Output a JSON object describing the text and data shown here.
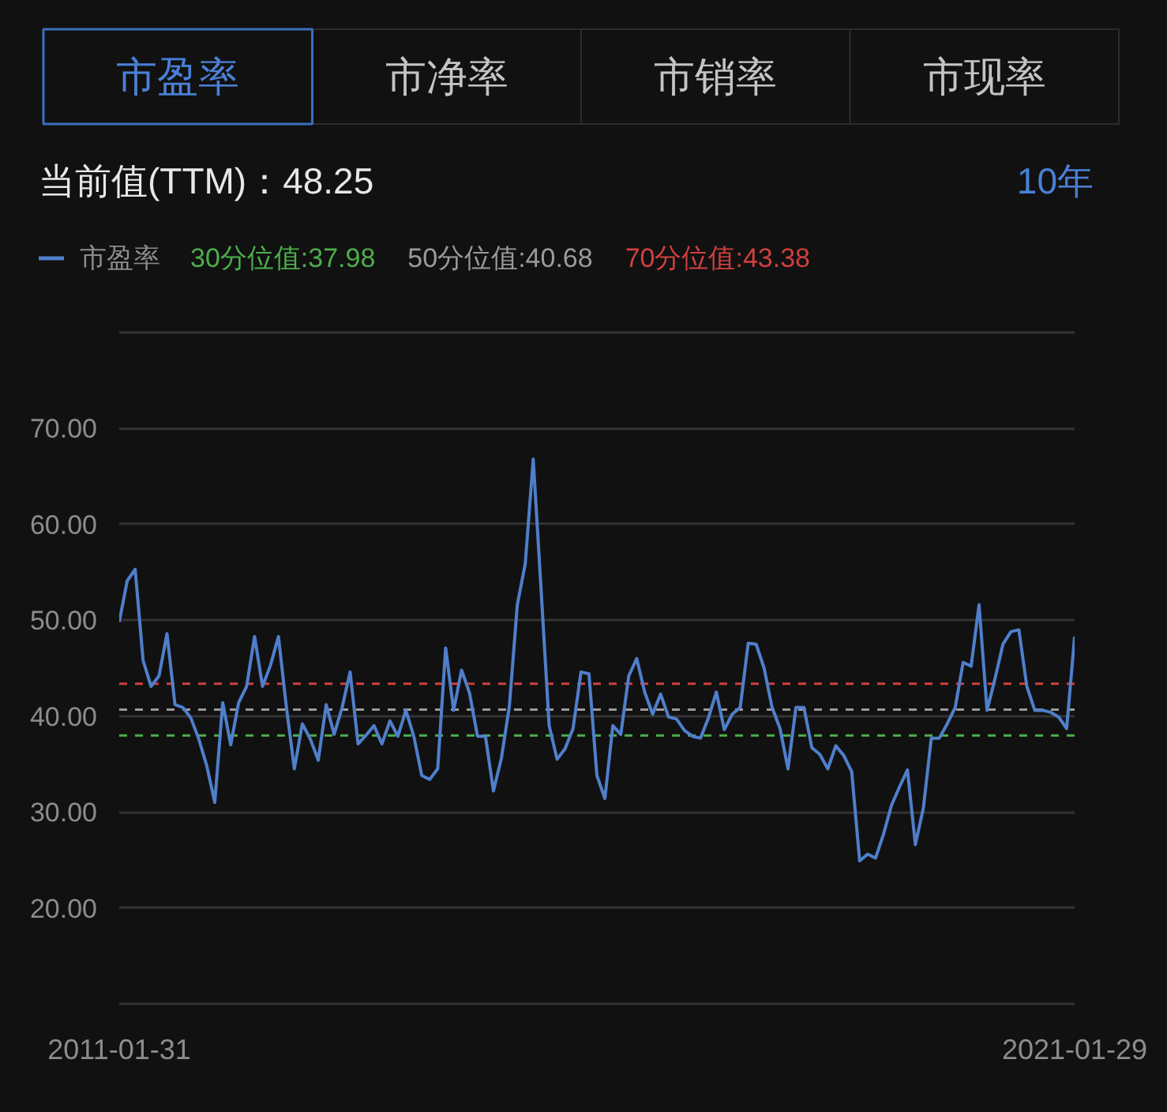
{
  "chart_data": {
    "type": "line",
    "subtitle": "当前值(TTM)：48.25",
    "annotations": [
      "市盈率",
      "市净率",
      "市销率",
      "市现率",
      "10年"
    ],
    "categories": [
      "2011-01-31",
      null,
      null,
      null,
      null,
      null,
      null,
      null,
      null,
      null,
      null,
      null,
      null,
      null,
      null,
      null,
      null,
      null,
      null,
      null,
      null,
      null,
      null,
      null,
      null,
      null,
      null,
      null,
      null,
      null,
      null,
      null,
      null,
      null,
      null,
      null,
      null,
      null,
      null,
      null,
      null,
      null,
      null,
      null,
      null,
      null,
      null,
      null,
      null,
      null,
      null,
      null,
      null,
      null,
      null,
      null,
      null,
      null,
      null,
      null,
      null,
      null,
      null,
      null,
      null,
      null,
      null,
      null,
      null,
      null,
      null,
      null,
      null,
      null,
      null,
      null,
      null,
      null,
      null,
      null,
      null,
      null,
      null,
      null,
      null,
      null,
      null,
      null,
      null,
      null,
      null,
      null,
      null,
      null,
      null,
      null,
      null,
      null,
      null,
      null,
      null,
      null,
      null,
      null,
      null,
      null,
      null,
      null,
      null,
      null,
      null,
      null,
      null,
      null,
      null,
      null,
      null,
      null,
      null,
      null,
      "2021-01-29"
    ],
    "series": [
      {
        "name": "市盈率",
        "color": "#4f7fcb",
        "values": [
          49.8,
          54.1,
          55.3,
          45.8,
          43.1,
          44.2,
          48.6,
          41.2,
          40.9,
          39.8,
          37.6,
          34.8,
          31.0,
          41.4,
          37.0,
          41.4,
          43.1,
          48.3,
          43.1,
          45.3,
          48.3,
          40.9,
          34.5,
          39.2,
          37.6,
          35.4,
          41.2,
          38.1,
          40.9,
          44.6,
          37.1,
          38.0,
          39.0,
          37.1,
          39.5,
          37.9,
          40.6,
          37.9,
          33.8,
          33.4,
          34.5,
          47.1,
          40.6,
          44.8,
          42.4,
          37.9,
          37.9,
          32.2,
          35.6,
          41.0,
          51.6,
          55.9,
          66.8,
          53.0,
          39.0,
          35.5,
          36.6,
          38.7,
          44.6,
          44.4,
          33.8,
          31.4,
          39.0,
          38.1,
          44.2,
          46.0,
          42.5,
          40.2,
          42.3,
          39.9,
          39.7,
          38.5,
          37.9,
          37.7,
          39.8,
          42.5,
          38.6,
          40.2,
          40.9,
          47.6,
          47.5,
          45.0,
          40.9,
          38.7,
          34.5,
          40.9,
          40.9,
          36.7,
          36.0,
          34.5,
          36.9,
          35.9,
          34.2,
          24.9,
          25.6,
          25.2,
          27.7,
          30.7,
          32.6,
          34.4,
          26.6,
          30.4,
          37.7,
          37.7,
          39.2,
          40.9,
          45.6,
          45.2,
          51.6,
          40.6,
          43.9,
          47.5,
          48.8,
          49.0,
          43.1,
          40.6,
          40.6,
          40.4,
          39.9,
          38.7,
          48.3
        ]
      }
    ],
    "ylim": [
      10,
      80
    ],
    "yticks": [
      {
        "value": 10,
        "label": null
      },
      {
        "value": 20,
        "label": "20.00"
      },
      {
        "value": 30,
        "label": "30.00"
      },
      {
        "value": 40,
        "label": "40.00"
      },
      {
        "value": 50,
        "label": "50.00"
      },
      {
        "value": 60,
        "label": "60.00"
      },
      {
        "value": 70,
        "label": "70.00"
      },
      {
        "value": 80,
        "label": null
      }
    ],
    "grid": "y",
    "legend": "top left",
    "ref_lines": [
      {
        "axis": "y",
        "value": 37.98,
        "label": "30分位值:37.98",
        "color": "#4cae4c",
        "line_style": "dashed"
      },
      {
        "axis": "y",
        "value": 40.68,
        "label": "50分位值:40.68",
        "color": "#9a9a9a",
        "line_style": "dashed"
      },
      {
        "axis": "y",
        "value": 43.38,
        "label": "70分位值:43.38",
        "color": "#d23f3f",
        "line_style": "dashed"
      }
    ]
  }
}
